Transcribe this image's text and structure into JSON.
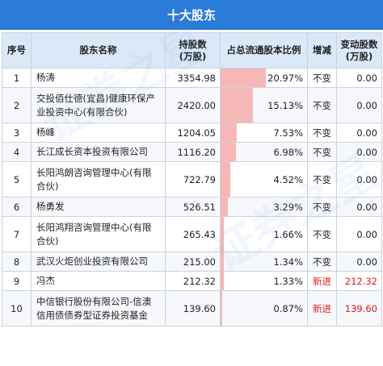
{
  "title": "十大股东",
  "headers": {
    "idx": "序号",
    "name": "股东名称",
    "shares": "持股数\n(万股)",
    "ratio": "占总流通股本比例",
    "change": "增减",
    "delta": "变动股数\n(万股)"
  },
  "rows": [
    {
      "idx": "1",
      "name": "杨涛",
      "shares": "3354.98",
      "ratio": "20.97%",
      "ratio_value": 20.97,
      "change": "不变",
      "delta": "0.00"
    },
    {
      "idx": "2",
      "name": "交投佰仕德(宜昌)健康环保产业投资中心(有限合伙)",
      "shares": "2420.00",
      "ratio": "15.13%",
      "ratio_value": 15.13,
      "change": "不变",
      "delta": "0.00"
    },
    {
      "idx": "3",
      "name": "杨峰",
      "shares": "1204.05",
      "ratio": "7.53%",
      "ratio_value": 7.53,
      "change": "不变",
      "delta": "0.00"
    },
    {
      "idx": "4",
      "name": "长江成长资本投资有限公司",
      "shares": "1116.20",
      "ratio": "6.98%",
      "ratio_value": 6.98,
      "change": "不变",
      "delta": "0.00"
    },
    {
      "idx": "5",
      "name": "长阳鸿朗咨询管理中心(有限合伙)",
      "shares": "722.79",
      "ratio": "4.52%",
      "ratio_value": 4.52,
      "change": "不变",
      "delta": "0.00"
    },
    {
      "idx": "6",
      "name": "杨勇发",
      "shares": "526.51",
      "ratio": "3.29%",
      "ratio_value": 3.29,
      "change": "不变",
      "delta": "0.00"
    },
    {
      "idx": "7",
      "name": "长阳鸿翔咨询管理中心(有限合伙)",
      "shares": "265.43",
      "ratio": "1.66%",
      "ratio_value": 1.66,
      "change": "不变",
      "delta": "0.00"
    },
    {
      "idx": "8",
      "name": "武汉火炬创业投资有限公司",
      "shares": "215.00",
      "ratio": "1.34%",
      "ratio_value": 1.34,
      "change": "不变",
      "delta": "0.00"
    },
    {
      "idx": "9",
      "name": "冯杰",
      "shares": "212.32",
      "ratio": "1.33%",
      "ratio_value": 1.33,
      "change": "新进",
      "delta": "212.32"
    },
    {
      "idx": "10",
      "name": "中信银行股份有限公司-信澳信用债债券型证券投资基金",
      "shares": "139.60",
      "ratio": "0.87%",
      "ratio_value": 0.87,
      "change": "新进",
      "delta": "139.60"
    }
  ],
  "colors": {
    "header_bar": "#2b7bd9",
    "table_header": "#dbe8f8",
    "ratio_bar": "#f6b7b7",
    "new_entry": "#e11b1b"
  }
}
